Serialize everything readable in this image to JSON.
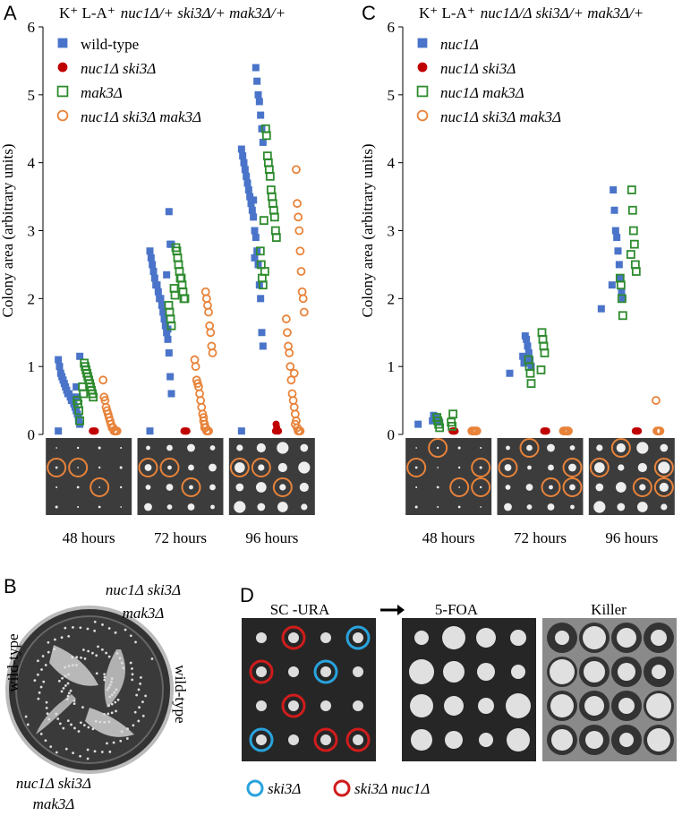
{
  "chart_data": [
    {
      "type": "strip",
      "panel": "A",
      "title_prefix": "K⁺ L-A⁺",
      "title_genotype": "nuc1Δ/+ ski3Δ/+ mak3Δ/+",
      "y_label": "Colony area (arbitrary units)",
      "categories": [
        "48 hours",
        "72 hours",
        "96 hours"
      ],
      "ylim": [
        0,
        6
      ],
      "yticks": [
        0,
        1,
        2,
        3,
        4,
        5,
        6
      ],
      "legend": "upper left",
      "series": [
        {
          "name": "wild-type",
          "color": "#4a74c9",
          "marker": "square",
          "filled": true,
          "italic": false,
          "values": [
            [
              0.05,
              0.15,
              0.2,
              0.3,
              0.35,
              0.4,
              0.45,
              0.5,
              0.5,
              0.55,
              0.6,
              0.6,
              0.65,
              0.7,
              0.75,
              0.8,
              0.85,
              0.9,
              1.0,
              1.1,
              1.15,
              0.25,
              0.55,
              0.7
            ],
            [
              0.05,
              0.6,
              0.85,
              1.2,
              1.4,
              1.5,
              1.6,
              1.7,
              1.8,
              1.9,
              2.0,
              2.0,
              2.1,
              2.2,
              2.2,
              2.3,
              2.4,
              2.5,
              2.6,
              2.7,
              2.8,
              2.8,
              3.28,
              1.55,
              2.35
            ],
            [
              0.05,
              1.3,
              1.5,
              2.0,
              2.2,
              2.5,
              2.7,
              2.9,
              3.0,
              3.2,
              3.3,
              3.4,
              3.5,
              3.6,
              3.7,
              3.8,
              3.9,
              4.0,
              4.1,
              4.2,
              4.3,
              4.5,
              4.7,
              4.9,
              5.0,
              5.2,
              5.4,
              2.6,
              3.45
            ]
          ]
        },
        {
          "name": "nuc1Δ ski3Δ",
          "color": "#c00000",
          "marker": "circle",
          "filled": true,
          "italic": true,
          "values": [
            [
              0.05,
              0.05,
              0.05,
              0.05,
              0.05,
              0.05
            ],
            [
              0.05,
              0.05,
              0.05,
              0.05,
              0.05,
              0.05
            ],
            [
              0.05,
              0.05,
              0.05,
              0.1,
              0.15,
              0.05
            ]
          ]
        },
        {
          "name": "mak3Δ",
          "color": "#2e8b2e",
          "marker": "square",
          "filled": false,
          "italic": true,
          "values": [
            [
              0.2,
              0.35,
              0.45,
              0.5,
              0.55,
              0.6,
              0.65,
              0.7,
              0.75,
              0.8,
              0.85,
              0.9,
              0.95,
              1.0,
              1.05,
              0.6,
              0.7
            ],
            [
              1.6,
              1.7,
              1.8,
              1.9,
              2.0,
              2.0,
              2.1,
              2.2,
              2.3,
              2.3,
              2.4,
              2.5,
              2.6,
              2.7,
              2.75,
              2.05,
              2.15
            ],
            [
              2.2,
              2.3,
              2.5,
              2.7,
              2.9,
              3.0,
              3.2,
              3.3,
              3.4,
              3.5,
              3.6,
              3.8,
              3.9,
              4.0,
              4.1,
              4.4,
              4.5,
              2.4,
              3.15
            ]
          ]
        },
        {
          "name": "nuc1Δ ski3Δ mak3Δ",
          "color": "#e8833a",
          "marker": "circle",
          "filled": false,
          "italic": true,
          "values": [
            [
              0.05,
              0.05,
              0.05,
              0.05,
              0.1,
              0.1,
              0.15,
              0.2,
              0.25,
              0.3,
              0.35,
              0.4,
              0.5,
              0.55,
              0.8
            ],
            [
              0.05,
              0.05,
              0.05,
              0.1,
              0.1,
              0.2,
              0.3,
              0.4,
              0.5,
              0.6,
              0.7,
              0.75,
              0.8,
              1.0,
              1.1,
              1.2,
              1.3,
              1.5,
              1.6,
              1.8,
              1.9,
              2.0,
              2.1,
              0.15,
              0.25
            ],
            [
              0.05,
              0.05,
              0.05,
              0.1,
              0.2,
              0.3,
              0.4,
              0.5,
              0.6,
              0.8,
              1.0,
              1.2,
              1.3,
              1.5,
              1.7,
              1.8,
              2.0,
              2.1,
              2.4,
              2.7,
              3.0,
              3.2,
              3.4,
              3.9,
              0.15,
              0.9
            ]
          ]
        }
      ]
    },
    {
      "type": "strip",
      "panel": "C",
      "title_prefix": "K⁺ L-A⁺",
      "title_genotype": "nuc1Δ/Δ ski3Δ/+ mak3Δ/+",
      "y_label": "Colony area (arbitrary units)",
      "categories": [
        "48 hours",
        "72 hours",
        "96 hours"
      ],
      "ylim": [
        0,
        6
      ],
      "yticks": [
        0,
        1,
        2,
        3,
        4,
        5,
        6
      ],
      "legend": "upper left",
      "series": [
        {
          "name": "nuc1Δ",
          "color": "#4a74c9",
          "marker": "square",
          "filled": true,
          "italic": true,
          "values": [
            [
              0.15,
              0.18,
              0.2,
              0.22,
              0.25,
              0.25,
              0.28,
              0.2
            ],
            [
              0.9,
              1.0,
              1.1,
              1.2,
              1.3,
              1.4,
              1.45,
              1.05,
              1.15
            ],
            [
              1.85,
              2.0,
              2.1,
              2.3,
              2.5,
              2.7,
              2.9,
              3.0,
              3.3,
              3.6,
              2.2
            ]
          ]
        },
        {
          "name": "nuc1Δ ski3Δ",
          "color": "#c00000",
          "marker": "circle",
          "filled": true,
          "italic": true,
          "values": [
            [
              0.05,
              0.05,
              0.05,
              0.05,
              0.05,
              0.05
            ],
            [
              0.05,
              0.05,
              0.05,
              0.05,
              0.05,
              0.05
            ],
            [
              0.05,
              0.05,
              0.05,
              0.05,
              0.05,
              0.05
            ]
          ]
        },
        {
          "name": "nuc1Δ mak3Δ",
          "color": "#2e8b2e",
          "marker": "square",
          "filled": false,
          "italic": true,
          "values": [
            [
              0.1,
              0.15,
              0.2,
              0.25,
              0.3,
              0.12,
              0.18
            ],
            [
              0.75,
              0.9,
              1.0,
              1.1,
              1.2,
              1.3,
              1.4,
              1.5,
              0.95
            ],
            [
              1.75,
              2.0,
              2.2,
              2.3,
              2.4,
              2.5,
              2.8,
              3.0,
              3.3,
              3.6,
              2.65
            ]
          ]
        },
        {
          "name": "nuc1Δ ski3Δ mak3Δ",
          "color": "#e8833a",
          "marker": "circle",
          "filled": false,
          "italic": true,
          "values": [
            [
              0.05,
              0.05,
              0.05,
              0.05,
              0.05,
              0.05
            ],
            [
              0.05,
              0.05,
              0.05,
              0.05,
              0.05,
              0.05
            ],
            [
              0.05,
              0.05,
              0.05,
              0.05,
              0.5
            ]
          ]
        }
      ]
    }
  ],
  "panel_b": {
    "panel": "B",
    "top_label": [
      "nuc1Δ ski3Δ",
      "mak3Δ"
    ],
    "left_label": "wild-type",
    "right_label": "wild-type",
    "bottom_label": [
      "nuc1Δ ski3Δ",
      "mak3Δ"
    ]
  },
  "panel_d": {
    "panel": "D",
    "plates": [
      "SC -URA",
      "5-FOA",
      "Killer"
    ],
    "legend": [
      {
        "name": "ski3Δ",
        "color": "#29a3dd"
      },
      {
        "name": "ski3Δ nuc1Δ",
        "color": "#d01c1c"
      }
    ]
  }
}
